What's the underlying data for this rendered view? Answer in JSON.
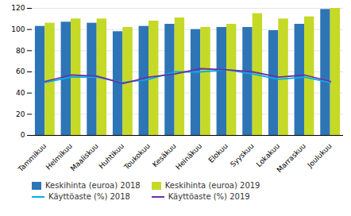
{
  "chart_data": {
    "type": "bar",
    "categories": [
      "Tammikuu",
      "Helmikuu",
      "Maaliskuu",
      "Huhtikuu",
      "Toukokuu",
      "Kesäkuu",
      "Heinäkuu",
      "Elokuu",
      "Syyskuu",
      "Lokakuu",
      "Marraskuu",
      "Joulukuu"
    ],
    "series": [
      {
        "name": "Keskihinta (euroa) 2018",
        "type": "bar",
        "color": "#2e75b6",
        "values": [
          103,
          107,
          106,
          98,
          103,
          105,
          100,
          102,
          102,
          99,
          105,
          119
        ]
      },
      {
        "name": "Keskihinta (euroa) 2019",
        "type": "bar",
        "color": "#c5d927",
        "values": [
          106,
          110,
          110,
          102,
          108,
          111,
          102,
          105,
          115,
          110,
          112,
          120
        ]
      },
      {
        "name": "Käyttöaste (%) 2018",
        "type": "line",
        "color": "#00b0f0",
        "values": [
          50,
          55,
          55,
          50,
          53,
          60,
          60,
          62,
          58,
          53,
          55,
          50
        ]
      },
      {
        "name": "Käyttöaste (%) 2019",
        "type": "line",
        "color": "#7030a0",
        "values": [
          51,
          57,
          56,
          49,
          55,
          58,
          63,
          62,
          60,
          55,
          57,
          51
        ]
      }
    ],
    "ylim": [
      0,
      120
    ],
    "yticks": [
      0,
      20,
      40,
      60,
      80,
      100,
      120
    ],
    "grid": true,
    "legend": "bottom"
  }
}
